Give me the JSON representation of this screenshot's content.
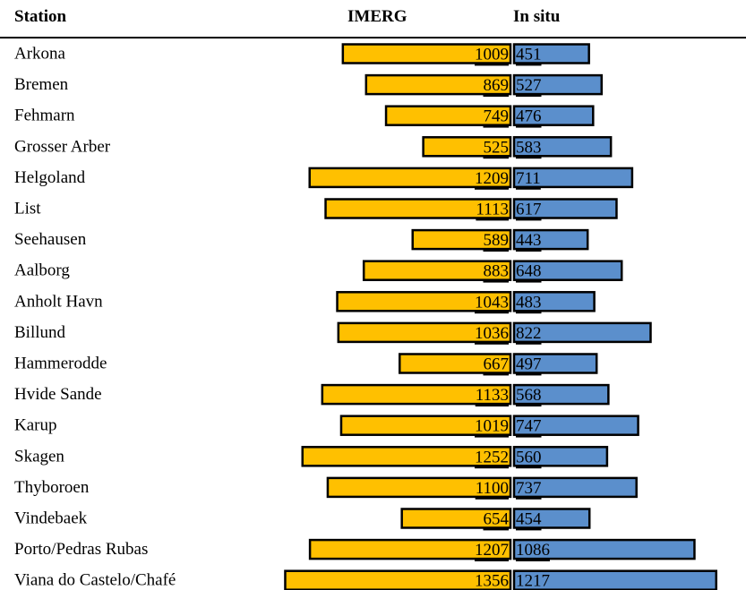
{
  "headers": {
    "station": "Station",
    "imerg": "IMERG",
    "insitu": "In situ"
  },
  "colors": {
    "imerg": "#FFC000",
    "insitu": "#5B8FCC",
    "border": "#000000"
  },
  "chart_data": {
    "type": "bar",
    "orientation": "horizontal-diverging",
    "categories": [
      "Arkona",
      "Bremen",
      "Fehmarn",
      "Grosser Arber",
      "Helgoland",
      "List",
      "Seehausen",
      "Aalborg",
      "Anholt Havn",
      "Billund",
      "Hammerodde",
      "Hvide Sande",
      "Karup",
      "Skagen",
      "Thyboroen",
      "Vindebaek",
      "Porto/Pedras Rubas",
      "Viana do Castelo/Chafé"
    ],
    "series": [
      {
        "name": "IMERG",
        "values": [
          1009,
          869,
          749,
          525,
          1209,
          1113,
          589,
          883,
          1043,
          1036,
          667,
          1133,
          1019,
          1252,
          1100,
          654,
          1207,
          1356
        ]
      },
      {
        "name": "In situ",
        "values": [
          451,
          527,
          476,
          583,
          711,
          617,
          443,
          648,
          483,
          822,
          497,
          568,
          747,
          560,
          737,
          454,
          1086,
          1217
        ]
      }
    ]
  }
}
